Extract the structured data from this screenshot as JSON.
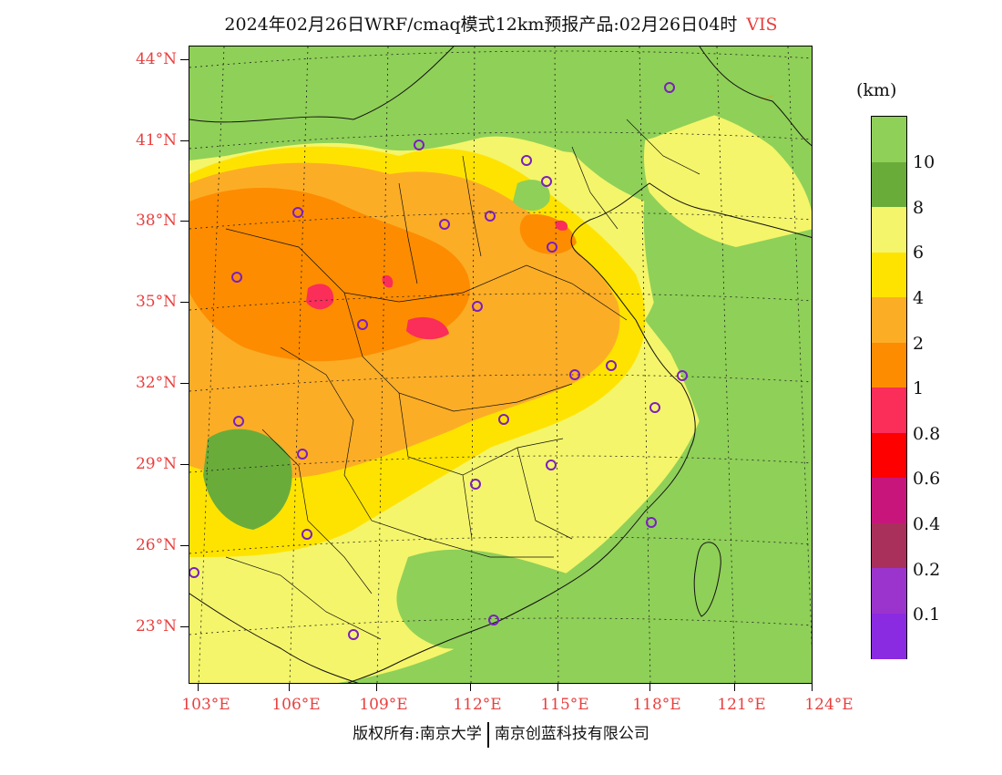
{
  "header": {
    "title": "2024年02月26日WRF/cmaq模式12km预报产品:02月26日04时",
    "variable": "VIS"
  },
  "map": {
    "lat_labels": [
      "44°N",
      "41°N",
      "38°N",
      "35°N",
      "32°N",
      "29°N",
      "26°N",
      "23°N"
    ],
    "lon_labels": [
      "103°E",
      "106°E",
      "109°E",
      "112°E",
      "115°E",
      "118°E",
      "121°E",
      "124°E"
    ],
    "station_marker": "circle-marker"
  },
  "colorbar": {
    "unit": "(km)",
    "levels": [
      "10",
      "8",
      "6",
      "4",
      "2",
      "1",
      "0.8",
      "0.6",
      "0.4",
      "0.2",
      "0.1"
    ],
    "colors": [
      "#8fd058",
      "#6aac3a",
      "#f4f56a",
      "#ffe300",
      "#fcad26",
      "#fd8c00",
      "#fb2d59",
      "#ff0000",
      "#c8157c",
      "#a8305a",
      "#9b34cd",
      "#8a2be2"
    ]
  },
  "footer": {
    "left": "版权所有:南京大学",
    "right": "南京创蓝科技有限公司"
  }
}
